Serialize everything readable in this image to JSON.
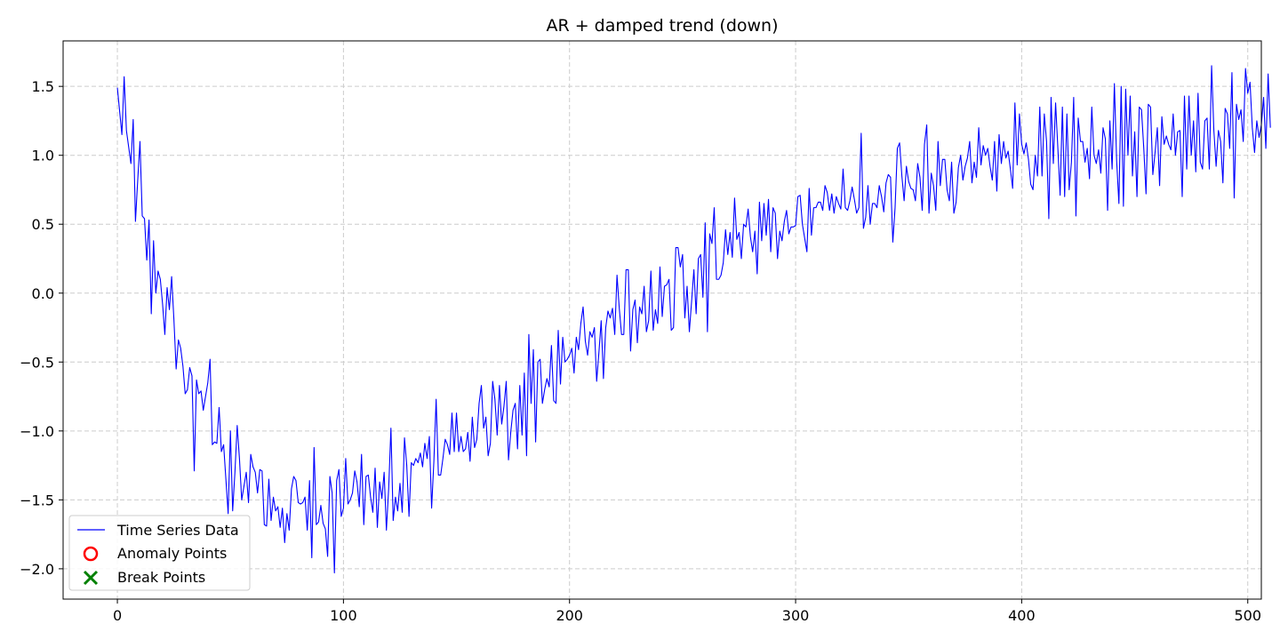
{
  "chart_data": {
    "type": "line",
    "title": "AR + damped trend (down)",
    "xlabel": "",
    "ylabel": "",
    "xlim": [
      -24,
      506
    ],
    "ylim": [
      -2.22,
      1.83
    ],
    "xticks": [
      0,
      100,
      200,
      300,
      400,
      500
    ],
    "xtick_labels": [
      "0",
      "100",
      "200",
      "300",
      "400",
      "500"
    ],
    "yticks": [
      -2.0,
      -1.5,
      -1.0,
      -0.5,
      0.0,
      0.5,
      1.0,
      1.5
    ],
    "ytick_labels": [
      "−2.0",
      "−1.5",
      "−1.0",
      "−0.5",
      "0.0",
      "0.5",
      "1.0",
      "1.5"
    ],
    "grid": true,
    "legend_position": "lower-left",
    "colors": {
      "series": "#0000ff",
      "anomaly": "#ff0000",
      "break": "#008000",
      "grid": "#cccccc"
    },
    "legend": [
      {
        "label": "Time Series Data",
        "marker": "line"
      },
      {
        "label": "Anomaly Points",
        "marker": "circle-open"
      },
      {
        "label": "Break Points",
        "marker": "x"
      }
    ],
    "series": [
      {
        "name": "Time Series Data",
        "x_start": 0,
        "x_step": 1,
        "values": [
          1.49,
          1.32,
          1.15,
          1.57,
          1.18,
          1.06,
          0.94,
          1.26,
          0.52,
          0.82,
          1.1,
          0.56,
          0.54,
          0.24,
          0.53,
          -0.15,
          0.38,
          0.0,
          0.16,
          0.1,
          -0.08,
          -0.3,
          0.04,
          -0.12,
          0.12,
          -0.19,
          -0.55,
          -0.34,
          -0.4,
          -0.53,
          -0.73,
          -0.7,
          -0.54,
          -0.6,
          -1.29,
          -0.63,
          -0.73,
          -0.71,
          -0.85,
          -0.75,
          -0.65,
          -0.48,
          -1.1,
          -1.08,
          -1.09,
          -0.83,
          -1.15,
          -1.1,
          -1.35,
          -1.6,
          -1.0,
          -1.58,
          -1.3,
          -0.96,
          -1.2,
          -1.5,
          -1.4,
          -1.3,
          -1.52,
          -1.17,
          -1.26,
          -1.3,
          -1.45,
          -1.28,
          -1.29,
          -1.68,
          -1.69,
          -1.35,
          -1.65,
          -1.48,
          -1.58,
          -1.55,
          -1.7,
          -1.56,
          -1.81,
          -1.6,
          -1.72,
          -1.42,
          -1.33,
          -1.36,
          -1.52,
          -1.53,
          -1.52,
          -1.48,
          -1.72,
          -1.36,
          -1.92,
          -1.12,
          -1.68,
          -1.66,
          -1.54,
          -1.67,
          -1.71,
          -1.91,
          -1.33,
          -1.45,
          -2.03,
          -1.36,
          -1.28,
          -1.62,
          -1.56,
          -1.2,
          -1.53,
          -1.5,
          -1.45,
          -1.29,
          -1.37,
          -1.55,
          -1.17,
          -1.68,
          -1.33,
          -1.32,
          -1.48,
          -1.59,
          -1.27,
          -1.7,
          -1.37,
          -1.49,
          -1.3,
          -1.72,
          -1.42,
          -0.98,
          -1.65,
          -1.48,
          -1.58,
          -1.38,
          -1.59,
          -1.05,
          -1.25,
          -1.62,
          -1.23,
          -1.25,
          -1.2,
          -1.23,
          -1.16,
          -1.26,
          -1.09,
          -1.2,
          -1.04,
          -1.56,
          -1.22,
          -0.77,
          -1.32,
          -1.32,
          -1.2,
          -1.06,
          -1.1,
          -1.17,
          -0.87,
          -1.15,
          -0.87,
          -1.15,
          -1.04,
          -1.15,
          -1.13,
          -1.01,
          -1.22,
          -0.9,
          -1.12,
          -1.06,
          -0.8,
          -0.67,
          -0.98,
          -0.9,
          -1.18,
          -1.09,
          -0.64,
          -0.77,
          -1.03,
          -0.67,
          -0.95,
          -0.82,
          -0.64,
          -1.21,
          -1.01,
          -0.85,
          -0.8,
          -1.13,
          -0.67,
          -1.03,
          -0.58,
          -1.18,
          -0.3,
          -0.8,
          -0.41,
          -1.08,
          -0.5,
          -0.48,
          -0.8,
          -0.7,
          -0.62,
          -0.68,
          -0.38,
          -0.78,
          -0.8,
          -0.27,
          -0.66,
          -0.32,
          -0.5,
          -0.48,
          -0.45,
          -0.4,
          -0.58,
          -0.32,
          -0.41,
          -0.22,
          -0.1,
          -0.35,
          -0.45,
          -0.28,
          -0.32,
          -0.25,
          -0.64,
          -0.43,
          -0.2,
          -0.62,
          -0.25,
          -0.13,
          -0.18,
          -0.11,
          -0.3,
          0.13,
          -0.11,
          -0.3,
          -0.3,
          0.17,
          0.17,
          -0.42,
          -0.12,
          -0.05,
          -0.36,
          -0.1,
          -0.15,
          0.05,
          -0.28,
          -0.2,
          0.16,
          -0.27,
          -0.12,
          -0.22,
          0.19,
          -0.17,
          0.05,
          0.06,
          0.1,
          -0.27,
          -0.25,
          0.33,
          0.33,
          0.19,
          0.28,
          -0.18,
          0.05,
          -0.28,
          -0.06,
          0.17,
          -0.15,
          0.25,
          0.28,
          -0.03,
          0.51,
          -0.28,
          0.43,
          0.36,
          0.62,
          0.1,
          0.1,
          0.13,
          0.22,
          0.46,
          0.28,
          0.44,
          0.26,
          0.69,
          0.39,
          0.44,
          0.25,
          0.5,
          0.48,
          0.61,
          0.41,
          0.3,
          0.45,
          0.14,
          0.66,
          0.38,
          0.65,
          0.42,
          0.68,
          0.3,
          0.62,
          0.58,
          0.25,
          0.45,
          0.38,
          0.52,
          0.6,
          0.43,
          0.48,
          0.48,
          0.49,
          0.7,
          0.71,
          0.5,
          0.4,
          0.3,
          0.76,
          0.42,
          0.62,
          0.62,
          0.66,
          0.66,
          0.6,
          0.78,
          0.73,
          0.6,
          0.72,
          0.58,
          0.7,
          0.65,
          0.61,
          0.9,
          0.62,
          0.6,
          0.67,
          0.77,
          0.68,
          0.58,
          0.62,
          1.16,
          0.47,
          0.55,
          0.78,
          0.5,
          0.65,
          0.65,
          0.62,
          0.78,
          0.7,
          0.59,
          0.8,
          0.86,
          0.84,
          0.37,
          0.62,
          1.05,
          1.09,
          0.85,
          0.67,
          0.92,
          0.81,
          0.76,
          0.75,
          0.67,
          0.94,
          0.84,
          0.6,
          1.08,
          1.22,
          0.58,
          0.87,
          0.78,
          0.6,
          1.1,
          0.78,
          0.97,
          0.97,
          0.75,
          0.67,
          0.95,
          0.58,
          0.66,
          0.91,
          1.0,
          0.82,
          0.92,
          0.98,
          1.1,
          0.8,
          0.95,
          0.84,
          1.2,
          0.93,
          1.07,
          1.0,
          1.05,
          0.92,
          0.82,
          1.1,
          0.74,
          1.15,
          0.94,
          1.1,
          0.98,
          1.03,
          0.9,
          0.76,
          1.38,
          0.93,
          1.3,
          1.08,
          1.01,
          1.09,
          0.97,
          0.79,
          0.75,
          1.0,
          0.85,
          1.35,
          0.85,
          1.3,
          1.1,
          0.54,
          1.42,
          0.94,
          1.38,
          1.05,
          0.71,
          1.35,
          0.7,
          1.3,
          0.75,
          0.95,
          1.42,
          0.56,
          1.27,
          1.1,
          1.1,
          0.95,
          1.05,
          0.83,
          1.35,
          1.0,
          0.94,
          1.04,
          0.87,
          1.2,
          1.12,
          0.6,
          1.25,
          0.9,
          1.52,
          0.96,
          0.65,
          1.5,
          0.63,
          1.48,
          1.0,
          1.43,
          0.85,
          1.17,
          0.7,
          1.35,
          1.33,
          1.05,
          0.72,
          1.37,
          1.35,
          0.86,
          1.02,
          1.2,
          0.78,
          1.28,
          1.08,
          1.14,
          1.08,
          1.04,
          1.3,
          1.0,
          1.17,
          1.18,
          0.7,
          1.43,
          0.9,
          1.43,
          1.0,
          1.25,
          0.88,
          1.45,
          0.95,
          0.9,
          1.25,
          1.27,
          0.9,
          1.65,
          1.18,
          0.92,
          1.18,
          1.1,
          0.8,
          1.34,
          1.3,
          1.05,
          1.6,
          0.69,
          1.37,
          1.26,
          1.33,
          1.1,
          1.63,
          1.45,
          1.53,
          1.2,
          1.02,
          1.25,
          1.13,
          1.22,
          1.42,
          1.05,
          1.59,
          1.2
        ]
      }
    ],
    "anomaly_points": [],
    "break_points": []
  }
}
